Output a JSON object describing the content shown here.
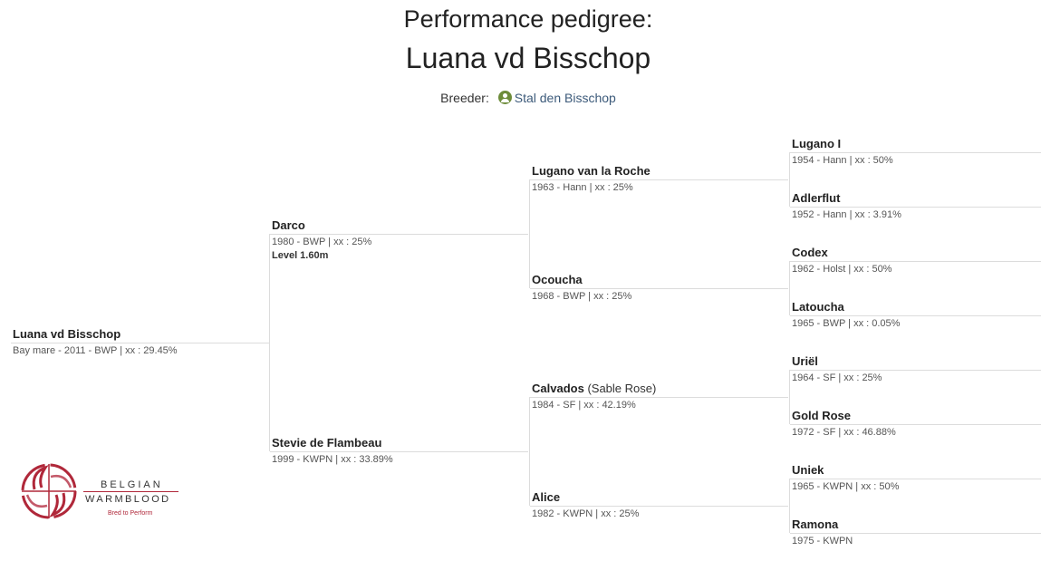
{
  "header": {
    "title": "Performance pedigree:",
    "horse_name": "Luana vd Bisschop",
    "breeder_label": "Breeder:",
    "breeder_name": "Stal den Bisschop"
  },
  "pedigree": {
    "subject": {
      "name": "Luana vd Bisschop",
      "info": "Bay mare - 2011 - BWP | xx : 29.45%"
    },
    "sire": {
      "name": "Darco",
      "info": "1980 - BWP | xx : 25%",
      "level": "Level 1.60m"
    },
    "dam": {
      "name": "Stevie de Flambeau",
      "info": "1999 - KWPN | xx : 33.89%"
    },
    "gen3": [
      {
        "name": "Lugano van la Roche",
        "info": "1963 - Hann | xx : 25%"
      },
      {
        "name": "Ocoucha",
        "info": "1968 - BWP | xx : 25%"
      },
      {
        "name": "Calvados",
        "alt": "(Sable Rose)",
        "info": "1984 - SF | xx : 42.19%"
      },
      {
        "name": "Alice",
        "info": "1982 - KWPN | xx : 25%"
      }
    ],
    "gen4": [
      {
        "name": "Lugano I",
        "info": "1954 - Hann | xx : 50%"
      },
      {
        "name": "Adlerflut",
        "info": "1952 - Hann | xx : 3.91%"
      },
      {
        "name": "Codex",
        "info": "1962 - Holst | xx : 50%"
      },
      {
        "name": "Latoucha",
        "info": "1965 - BWP | xx : 0.05%"
      },
      {
        "name": "Uriël",
        "info": "1964 - SF | xx : 25%"
      },
      {
        "name": "Gold Rose",
        "info": "1972 - SF | xx : 46.88%"
      },
      {
        "name": "Uniek",
        "info": "1965 - KWPN | xx : 50%"
      },
      {
        "name": "Ramona",
        "info": "1975 - KWPN"
      }
    ]
  },
  "logo": {
    "line1": "BELGIAN",
    "line2": "WARMBLOOD",
    "tagline": "Bred to Perform"
  },
  "colors": {
    "accent": "#b0283a",
    "breeder_icon": "#6d8c3a",
    "link": "#3c5a7a",
    "divider": "#dcdcdc"
  }
}
